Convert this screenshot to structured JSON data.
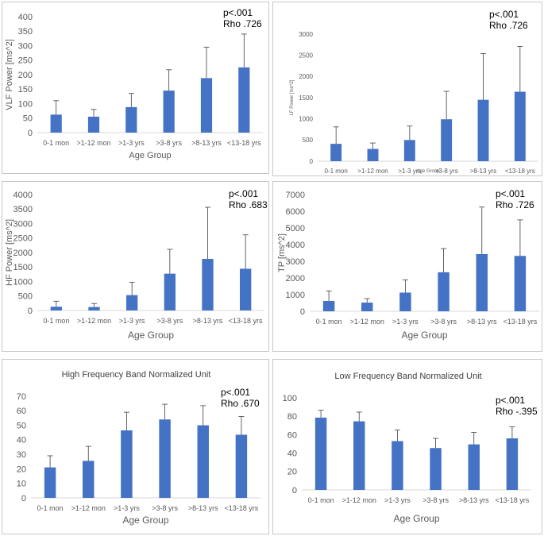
{
  "chart_data": [
    {
      "type": "bar",
      "title": "",
      "xlabel": "Age Group",
      "ylabel": "VLF Power [ms^2]",
      "categories": [
        "0-1 mon",
        ">1-12 mon",
        ">1-3 yrs",
        ">3-8 yrs",
        ">8-13 yrs",
        "<13-18 yrs"
      ],
      "values": [
        62,
        55,
        88,
        145,
        188,
        225
      ],
      "error_upper": [
        110,
        80,
        135,
        217,
        295,
        340
      ],
      "ylim": [
        0,
        400
      ],
      "yticks": [
        0,
        50,
        100,
        150,
        200,
        250,
        300,
        350,
        400
      ],
      "annotation": [
        "p<.001",
        "Rho .726"
      ],
      "bar_color": "#4472C4",
      "grid": false
    },
    {
      "type": "bar",
      "title": "",
      "xlabel": "Age Group",
      "ylabel": "LF Power [ms^2]",
      "categories": [
        "0-1 mon",
        ">1-12 mon",
        ">1-3 yrs",
        ">3-8 yrs",
        ">8-13 yrs",
        "<13-18 yrs"
      ],
      "values": [
        410,
        290,
        500,
        990,
        1450,
        1640
      ],
      "error_upper": [
        810,
        430,
        830,
        1650,
        2540,
        2710
      ],
      "ylim": [
        0,
        3000
      ],
      "yticks": [
        0,
        500,
        1000,
        1500,
        2000,
        2500,
        3000
      ],
      "annotation": [
        "p<.001",
        "Rho .726"
      ],
      "bar_color": "#4472C4",
      "grid": false
    },
    {
      "type": "bar",
      "title": "",
      "xlabel": "Age Group",
      "ylabel": "HF Power [ms^2]",
      "categories": [
        "0-1 mon",
        ">1-12 mon",
        ">1-3 yrs",
        ">3-8 yrs",
        ">8-13 yrs",
        "<13-18 yrs"
      ],
      "values": [
        130,
        120,
        530,
        1270,
        1780,
        1440
      ],
      "error_upper": [
        320,
        240,
        970,
        2110,
        3560,
        2610
      ],
      "ylim": [
        0,
        4000
      ],
      "yticks": [
        0,
        500,
        1000,
        1500,
        2000,
        2500,
        3000,
        3500,
        4000
      ],
      "annotation": [
        "p<.001",
        "Rho .683"
      ],
      "bar_color": "#4472C4",
      "grid": false
    },
    {
      "type": "bar",
      "title": "",
      "xlabel": "Age Group",
      "ylabel": "TP [ms^2]",
      "categories": [
        "0-1 mon",
        ">1-12 mon",
        ">1-3 yrs",
        ">3-8 yrs",
        ">8-13 yrs",
        "<13-18 yrs"
      ],
      "values": [
        620,
        520,
        1120,
        2340,
        3430,
        3320
      ],
      "error_upper": [
        1220,
        760,
        1880,
        3760,
        6250,
        5480
      ],
      "ylim": [
        0,
        7000
      ],
      "yticks": [
        0,
        1000,
        2000,
        3000,
        4000,
        5000,
        6000,
        7000
      ],
      "annotation": [
        "p<.001",
        "Rho .726"
      ],
      "bar_color": "#4472C4",
      "grid": false
    },
    {
      "type": "bar",
      "title": "High Frequency Band Normalized Unit",
      "xlabel": "Age Group",
      "ylabel": "",
      "categories": [
        "0-1 mon",
        ">1-12 mon",
        ">1-3 yrs",
        ">3-8 yrs",
        ">8-13 yrs",
        "<13-18 yrs"
      ],
      "values": [
        21,
        25.5,
        46.5,
        54,
        50,
        43.5
      ],
      "error_upper": [
        29,
        35.5,
        59,
        64.5,
        63.5,
        56
      ],
      "ylim": [
        0,
        70
      ],
      "yticks": [
        0,
        10,
        20,
        30,
        40,
        50,
        60,
        70
      ],
      "annotation": [
        "p<.001",
        "Rho .670"
      ],
      "bar_color": "#4472C4",
      "grid": false
    },
    {
      "type": "bar",
      "title": "Low Frequency Band Normalized Unit",
      "xlabel": "Age Group",
      "ylabel": "",
      "categories": [
        "0-1 mon",
        ">1-12 mon",
        ">1-3 yrs",
        ">3-8 yrs",
        ">8-13 yrs",
        "<13-18 yrs"
      ],
      "values": [
        78.5,
        74.5,
        53,
        45.5,
        49.5,
        56
      ],
      "error_upper": [
        86.5,
        84.5,
        65,
        56,
        62.5,
        68.5
      ],
      "ylim": [
        0,
        100
      ],
      "yticks": [
        0,
        20,
        40,
        60,
        80,
        100
      ],
      "annotation": [
        "p<.001",
        "Rho -.395"
      ],
      "bar_color": "#4472C4",
      "grid": false
    }
  ]
}
